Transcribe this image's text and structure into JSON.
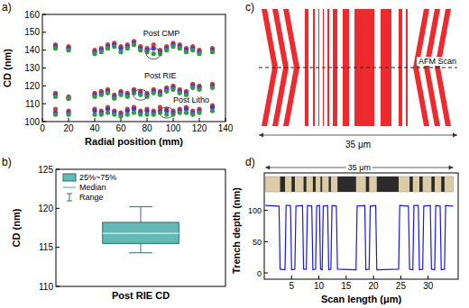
{
  "panel_labels": [
    "a)",
    "b)",
    "c)",
    "d)"
  ],
  "chart_data": [
    {
      "type": "scatter",
      "xlabel": "Radial position (mm)",
      "ylabel": "CD (nm)",
      "xlim": [
        0,
        140
      ],
      "ylim": [
        100,
        160
      ],
      "xticks": [
        0,
        20,
        40,
        60,
        80,
        100,
        120,
        140
      ],
      "yticks": [
        100,
        110,
        120,
        130,
        140,
        150,
        160
      ],
      "marker": "circle",
      "x": [
        10,
        20,
        40,
        45,
        50,
        55,
        60,
        65,
        70,
        75,
        80,
        85,
        90,
        95,
        100,
        105,
        110,
        115,
        120,
        130
      ],
      "series": [
        {
          "color": "#e8353a",
          "values": [
            143,
            142,
            140,
            141,
            143,
            144,
            142,
            143,
            145,
            142,
            141,
            143,
            140,
            142,
            144,
            143,
            141,
            142,
            140,
            141
          ]
        },
        {
          "color": "#3a3adf",
          "values": [
            142,
            141,
            139,
            140,
            142,
            143,
            141,
            142,
            144,
            141,
            140,
            141,
            139,
            141,
            143,
            142,
            140,
            141,
            139,
            140
          ]
        },
        {
          "color": "#2e9e3a",
          "values": [
            141,
            140,
            138,
            139,
            141,
            142,
            139,
            141,
            143,
            140,
            139,
            138,
            138,
            140,
            142,
            141,
            139,
            140,
            138,
            139
          ]
        },
        {
          "color": "#e8353a",
          "values": [
            116,
            114,
            116,
            117,
            118,
            115,
            117,
            116,
            118,
            117,
            116,
            118,
            117,
            119,
            120,
            118,
            117,
            121,
            120,
            121
          ]
        },
        {
          "color": "#3a3adf",
          "values": [
            115,
            113,
            115,
            116,
            117,
            114,
            116,
            115,
            117,
            116,
            115,
            117,
            116,
            118,
            119,
            117,
            116,
            120,
            119,
            120
          ]
        },
        {
          "color": "#2e9e3a",
          "values": [
            114,
            113,
            114,
            115,
            116,
            113,
            115,
            114,
            116,
            115,
            114,
            116,
            115,
            117,
            118,
            116,
            115,
            119,
            118,
            119
          ]
        },
        {
          "color": "#e8353a",
          "values": [
            107,
            106,
            107,
            106,
            108,
            106,
            105,
            107,
            108,
            106,
            107,
            106,
            108,
            107,
            106,
            107,
            108,
            106,
            107,
            109
          ]
        },
        {
          "color": "#3a3adf",
          "values": [
            105,
            105,
            106,
            105,
            107,
            105,
            104,
            106,
            107,
            105,
            106,
            105,
            106,
            106,
            105,
            106,
            107,
            105,
            106,
            108
          ]
        },
        {
          "color": "#2e9e3a",
          "values": [
            104,
            104,
            104,
            104,
            105,
            104,
            103,
            104,
            105,
            104,
            104,
            104,
            105,
            104,
            104,
            105,
            105,
            104,
            105,
            106
          ]
        }
      ],
      "annotations": [
        {
          "text": "Post CMP",
          "x": 85,
          "y": 138,
          "text_x": 77,
          "text_y": 148
        },
        {
          "text": "Post RIE",
          "x": 75,
          "y": 115,
          "text_x": 78,
          "text_y": 124
        },
        {
          "text": "Post Litho",
          "x": 95,
          "y": 105,
          "text_x": 100,
          "text_y": 110.5
        }
      ]
    },
    {
      "type": "box",
      "categories": [
        "Post RIE CD"
      ],
      "ylabel": "CD (nm)",
      "ylim": [
        110,
        125
      ],
      "yticks": [
        110,
        115,
        120,
        125
      ],
      "q1": [
        115.5
      ],
      "median": [
        116.8
      ],
      "q3": [
        118.2
      ],
      "min": [
        114.3
      ],
      "max": [
        120.2
      ],
      "color": "#62b9b6",
      "legend": "upper left",
      "legend_entries": [
        "25%~75%",
        "Median",
        "Range"
      ]
    },
    {
      "type": "line",
      "xlabel": "Scan length (μm)",
      "ylabel": "Trench depth (nm)",
      "xlim": [
        0,
        35.5
      ],
      "ylim": [
        -10,
        160
      ],
      "xticks": [
        5,
        10,
        15,
        20,
        25,
        30
      ],
      "yticks": [
        0,
        50,
        100
      ],
      "color": "#1a1adc",
      "image_label": "35 μm",
      "x": [
        0.2,
        2.7,
        2.9,
        3.8,
        4.0,
        4.8,
        5.0,
        5.6,
        5.8,
        7.0,
        7.2,
        7.7,
        7.9,
        8.7,
        8.9,
        9.4,
        9.6,
        10.1,
        10.3,
        10.6,
        10.8,
        11.6,
        11.8,
        12.2,
        12.4,
        13.2,
        13.4,
        16.8,
        17.0,
        18.4,
        18.6,
        19.2,
        19.4,
        20.4,
        20.6,
        24.6,
        24.8,
        26.4,
        26.6,
        27.2,
        27.4,
        28.2,
        28.4,
        29.0,
        29.2,
        30.4,
        30.6,
        31.2,
        31.4,
        32.2,
        32.4,
        33.0,
        33.2,
        34.6
      ],
      "values": [
        108,
        107,
        6,
        5,
        108,
        108,
        5,
        6,
        107,
        108,
        6,
        6,
        108,
        107,
        5,
        6,
        107,
        108,
        6,
        5,
        107,
        108,
        5,
        6,
        108,
        107,
        6,
        5,
        107,
        108,
        5,
        6,
        107,
        108,
        5,
        6,
        108,
        107,
        6,
        5,
        108,
        108,
        5,
        6,
        107,
        108,
        6,
        5,
        108,
        107,
        5,
        6,
        108,
        107
      ]
    }
  ],
  "diagram": {
    "scan_label": "AFM Scan",
    "width_label": "35 μm"
  }
}
